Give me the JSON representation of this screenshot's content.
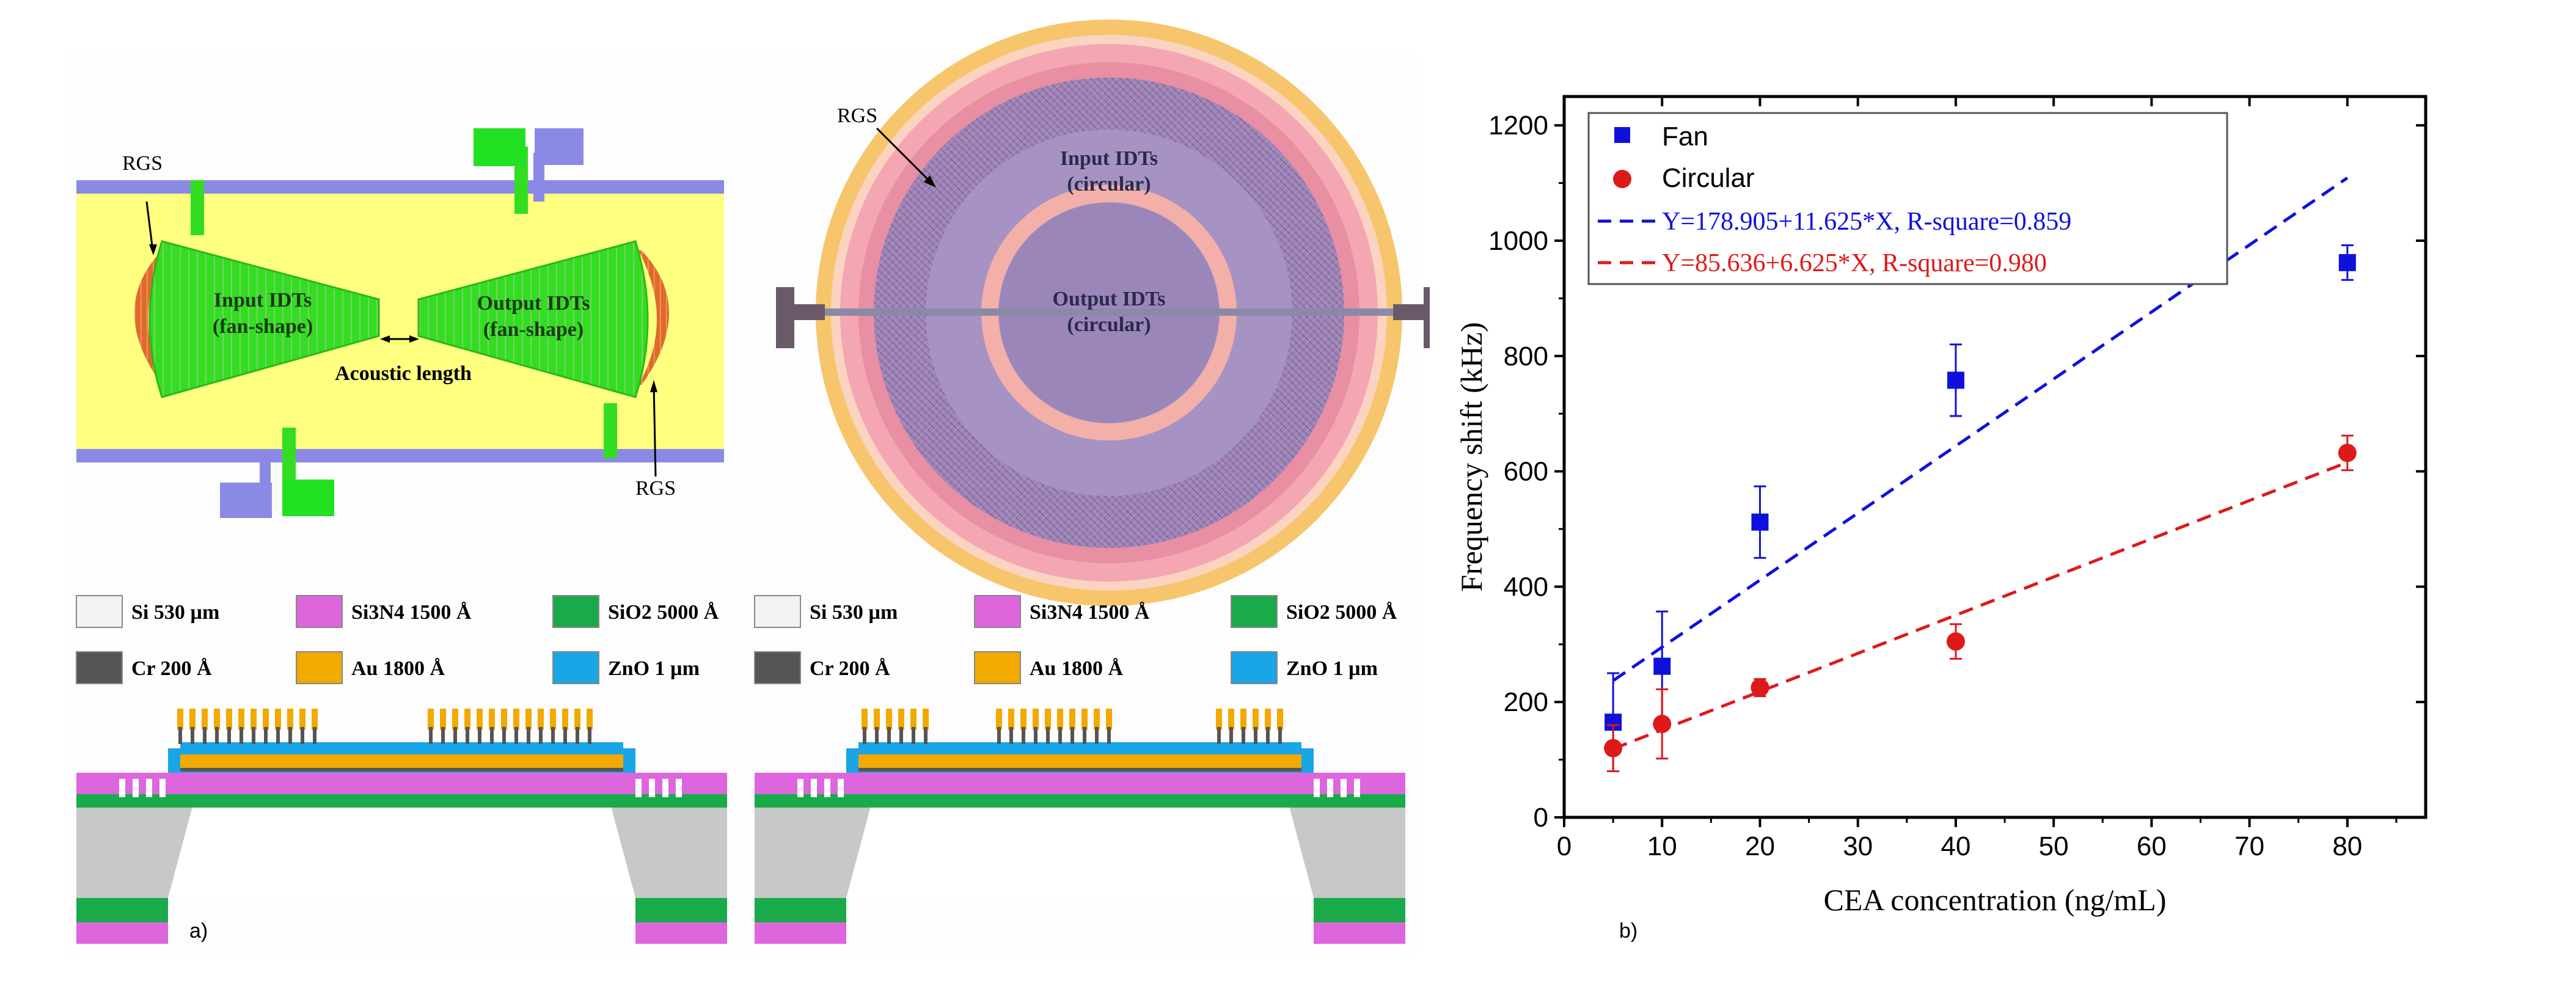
{
  "panel_a": {
    "label": "a)",
    "fan": {
      "rgs_left": "RGS",
      "rgs_right": "RGS",
      "input_line1": "Input IDTs",
      "input_line2": "(fan-shape)",
      "output_line1": "Output IDTs",
      "output_line2": "(fan-shape)",
      "acoustic": "Acoustic length"
    },
    "circular": {
      "rgs": "RGS",
      "input_line1": "Input IDTs",
      "input_line2": "(circular)",
      "output_line1": "Output IDTs",
      "output_line2": "(circular)"
    },
    "legend_left": [
      {
        "label": "Si 530 µm",
        "color": "#f2f2f2"
      },
      {
        "label": "Si3N4 1500 Å",
        "color": "#dd66dd"
      },
      {
        "label": "SiO2 5000 Å",
        "color": "#1aaa4a"
      },
      {
        "label": "Cr 200 Å",
        "color": "#555555"
      },
      {
        "label": "Au 1800 Å",
        "color": "#f2a900"
      },
      {
        "label": "ZnO 1 µm",
        "color": "#1aa5e6"
      }
    ],
    "legend_right": [
      {
        "label": "Si 530 µm",
        "color": "#f2f2f2"
      },
      {
        "label": "Si3N4 1500 Å",
        "color": "#dd66dd"
      },
      {
        "label": "SiO2 5000 Å",
        "color": "#1aaa4a"
      },
      {
        "label": "Cr 200 Å",
        "color": "#555555"
      },
      {
        "label": "Au 1800 Å",
        "color": "#f2a900"
      },
      {
        "label": "ZnO 1 µm",
        "color": "#1aa5e6"
      }
    ]
  },
  "panel_b": {
    "label": "b)"
  },
  "chart_data": {
    "type": "scatter",
    "xlabel": "CEA concentration (ng/mL)",
    "ylabel": "Frequency shift (kHz)",
    "xlim": [
      0,
      88
    ],
    "ylim": [
      0,
      1250
    ],
    "xticks": [
      "0",
      "10",
      "20",
      "30",
      "40",
      "50",
      "60",
      "70",
      "80"
    ],
    "yticks": [
      "0",
      "200",
      "400",
      "600",
      "800",
      "1000",
      "1200"
    ],
    "series": [
      {
        "name": "Fan",
        "color": "#1010dd",
        "marker": "square",
        "x": [
          5,
          10,
          20,
          40,
          80
        ],
        "y": [
          165,
          262,
          512,
          758,
          962
        ],
        "err": [
          85,
          95,
          62,
          62,
          30
        ],
        "fit_label": "Y=178.905+11.625*X, R-square=0.859",
        "fit_intercept": 178.905,
        "fit_slope": 11.625
      },
      {
        "name": "Circular",
        "color": "#dd1a1a",
        "marker": "circle",
        "x": [
          5,
          10,
          20,
          40,
          80
        ],
        "y": [
          120,
          162,
          225,
          305,
          632
        ],
        "err": [
          40,
          60,
          15,
          30,
          30
        ],
        "fit_label": "Y=85.636+6.625*X, R-square=0.980",
        "fit_intercept": 85.636,
        "fit_slope": 6.625
      }
    ]
  }
}
